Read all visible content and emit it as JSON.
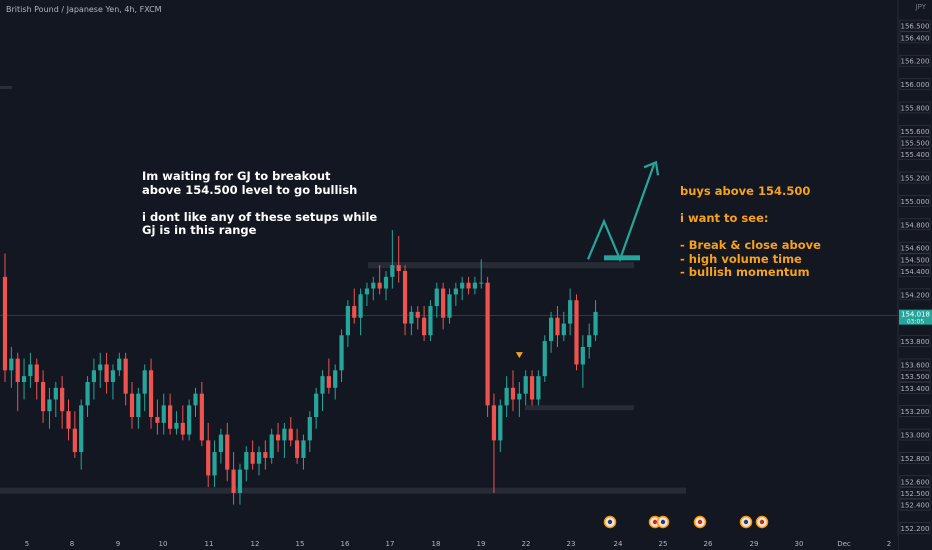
{
  "header": {
    "title": "British Pound / Japanese Yen, 4h, FXCM",
    "currency": "JPY"
  },
  "annotations": {
    "left_note": "Im waiting for GJ to breakout\nabove 154.500 level to go bullish\n\ni dont like any of these setups while\nGj is in this range",
    "right_note_lines": [
      "buys above 154.500",
      "",
      "i want to see:",
      "",
      "- Break & close above",
      "- high volume time",
      "- bullish momentum"
    ]
  },
  "colors": {
    "background": "#131722",
    "bull": "#26a69a",
    "bear": "#ef5350",
    "text": "#b2b5be",
    "annotation_orange": "#f7a21b",
    "zone": "#2a2e39"
  },
  "chart_data": {
    "type": "candlestick",
    "title": "British Pound / Japanese Yen, 4h, FXCM",
    "ylim": [
      152.2,
      156.6
    ],
    "x_tick_labels": [
      "5",
      "8",
      "9",
      "10",
      "11",
      "12",
      "15",
      "16",
      "17",
      "18",
      "19",
      "22",
      "23",
      "24",
      "25",
      "26",
      "29",
      "30",
      "Dec",
      "2"
    ],
    "y_tick_labels": [
      "156.500",
      "156.400",
      "156.200",
      "156.000",
      "155.800",
      "155.600",
      "155.500",
      "155.400",
      "155.200",
      "155.000",
      "154.800",
      "154.600",
      "154.500",
      "154.400",
      "154.200",
      "154.000",
      "153.800",
      "153.600",
      "153.500",
      "153.400",
      "153.200",
      "153.000",
      "152.800",
      "152.600",
      "152.500",
      "152.400",
      "152.200"
    ],
    "current_price": {
      "label": "154.018",
      "countdown": "03:05",
      "value": 154.018
    },
    "levels": {
      "resistance": 154.45,
      "support_mid": 153.23,
      "support_low": 152.52,
      "breakout_target": 154.5
    },
    "candles": [
      [
        154.35,
        154.55,
        153.45,
        153.55
      ],
      [
        153.55,
        153.75,
        153.4,
        153.65
      ],
      [
        153.65,
        153.7,
        153.2,
        153.45
      ],
      [
        153.45,
        153.65,
        153.3,
        153.5
      ],
      [
        153.5,
        153.7,
        153.4,
        153.6
      ],
      [
        153.6,
        153.65,
        153.3,
        153.45
      ],
      [
        153.45,
        153.55,
        153.1,
        153.2
      ],
      [
        153.2,
        153.4,
        153.05,
        153.3
      ],
      [
        153.3,
        153.45,
        153.15,
        153.4
      ],
      [
        153.4,
        153.5,
        153.05,
        153.2
      ],
      [
        153.2,
        153.3,
        152.95,
        153.05
      ],
      [
        153.05,
        153.2,
        152.8,
        152.85
      ],
      [
        152.85,
        153.3,
        152.7,
        153.25
      ],
      [
        153.25,
        153.5,
        153.15,
        153.45
      ],
      [
        153.45,
        153.65,
        153.3,
        153.55
      ],
      [
        153.55,
        153.7,
        153.4,
        153.6
      ],
      [
        153.6,
        153.7,
        153.35,
        153.45
      ],
      [
        153.45,
        153.6,
        153.3,
        153.55
      ],
      [
        153.55,
        153.7,
        153.5,
        153.65
      ],
      [
        153.65,
        153.7,
        153.25,
        153.35
      ],
      [
        153.35,
        153.45,
        153.05,
        153.15
      ],
      [
        153.15,
        153.4,
        153.05,
        153.35
      ],
      [
        153.35,
        153.6,
        153.2,
        153.55
      ],
      [
        153.55,
        153.65,
        153.05,
        153.15
      ],
      [
        153.15,
        153.3,
        153.0,
        153.1
      ],
      [
        153.1,
        153.35,
        153.0,
        153.25
      ],
      [
        153.25,
        153.35,
        153.0,
        153.05
      ],
      [
        153.05,
        153.2,
        153.0,
        153.1
      ],
      [
        153.1,
        153.25,
        152.95,
        153.0
      ],
      [
        153.0,
        153.3,
        152.95,
        153.25
      ],
      [
        153.25,
        153.4,
        153.15,
        153.35
      ],
      [
        153.35,
        153.45,
        152.9,
        152.95
      ],
      [
        152.95,
        153.1,
        152.55,
        152.65
      ],
      [
        152.65,
        152.95,
        152.55,
        152.85
      ],
      [
        152.85,
        153.05,
        152.75,
        153.0
      ],
      [
        153.0,
        153.1,
        152.6,
        152.7
      ],
      [
        152.7,
        152.85,
        152.4,
        152.5
      ],
      [
        152.5,
        152.75,
        152.4,
        152.7
      ],
      [
        152.7,
        152.9,
        152.6,
        152.85
      ],
      [
        152.85,
        152.95,
        152.7,
        152.75
      ],
      [
        152.75,
        152.9,
        152.65,
        152.85
      ],
      [
        152.85,
        152.95,
        152.7,
        152.8
      ],
      [
        152.8,
        153.05,
        152.75,
        153.0
      ],
      [
        153.0,
        153.1,
        152.85,
        152.95
      ],
      [
        152.95,
        153.1,
        152.8,
        153.05
      ],
      [
        153.05,
        153.15,
        152.9,
        152.95
      ],
      [
        152.95,
        153.05,
        152.75,
        152.8
      ],
      [
        152.8,
        153.0,
        152.7,
        152.95
      ],
      [
        152.95,
        153.2,
        152.85,
        153.15
      ],
      [
        153.15,
        153.4,
        153.05,
        153.35
      ],
      [
        153.35,
        153.55,
        153.2,
        153.5
      ],
      [
        153.5,
        153.65,
        153.35,
        153.4
      ],
      [
        153.4,
        153.6,
        153.3,
        153.55
      ],
      [
        153.55,
        153.9,
        153.45,
        153.85
      ],
      [
        153.85,
        154.15,
        153.75,
        154.1
      ],
      [
        154.1,
        154.25,
        153.95,
        154.0
      ],
      [
        154.0,
        154.25,
        153.85,
        154.2
      ],
      [
        154.2,
        154.3,
        154.1,
        154.25
      ],
      [
        154.25,
        154.35,
        154.15,
        154.3
      ],
      [
        154.3,
        154.45,
        154.2,
        154.25
      ],
      [
        154.25,
        154.4,
        154.15,
        154.35
      ],
      [
        154.35,
        154.75,
        154.25,
        154.45
      ],
      [
        154.45,
        154.7,
        154.3,
        154.4
      ],
      [
        154.4,
        154.45,
        153.85,
        153.95
      ],
      [
        153.95,
        154.1,
        153.85,
        154.05
      ],
      [
        154.05,
        154.1,
        153.9,
        154.0
      ],
      [
        154.0,
        154.1,
        153.8,
        153.85
      ],
      [
        153.85,
        154.15,
        153.8,
        154.1
      ],
      [
        154.1,
        154.3,
        154.0,
        154.25
      ],
      [
        154.25,
        154.3,
        153.9,
        154.0
      ],
      [
        154.0,
        154.25,
        153.95,
        154.2
      ],
      [
        154.2,
        154.3,
        154.1,
        154.25
      ],
      [
        154.25,
        154.35,
        154.15,
        154.3
      ],
      [
        154.3,
        154.35,
        154.2,
        154.25
      ],
      [
        154.25,
        154.35,
        154.2,
        154.3
      ],
      [
        154.3,
        154.5,
        154.25,
        154.3
      ],
      [
        154.3,
        154.35,
        153.15,
        153.25
      ],
      [
        153.25,
        153.35,
        152.5,
        152.95
      ],
      [
        152.95,
        153.3,
        152.85,
        153.25
      ],
      [
        153.25,
        153.5,
        153.15,
        153.4
      ],
      [
        153.4,
        153.55,
        153.2,
        153.3
      ],
      [
        153.3,
        153.45,
        153.15,
        153.35
      ],
      [
        153.35,
        153.55,
        153.25,
        153.5
      ],
      [
        153.5,
        153.55,
        153.25,
        153.3
      ],
      [
        153.3,
        153.55,
        153.25,
        153.5
      ],
      [
        153.5,
        153.85,
        153.45,
        153.8
      ],
      [
        153.8,
        154.05,
        153.7,
        154.0
      ],
      [
        154.0,
        154.1,
        153.75,
        153.85
      ],
      [
        153.85,
        154.05,
        153.8,
        153.95
      ],
      [
        153.95,
        154.25,
        153.85,
        154.15
      ],
      [
        154.15,
        154.2,
        153.55,
        153.6
      ],
      [
        153.6,
        153.85,
        153.4,
        153.75
      ],
      [
        153.75,
        153.95,
        153.65,
        153.85
      ],
      [
        153.85,
        154.15,
        153.8,
        154.05
      ]
    ],
    "signal_marker": {
      "candle_index": 81,
      "value": 153.68,
      "type": "down-triangle"
    },
    "event_icons": [
      {
        "label": "🇬🇧",
        "x_label": "24"
      },
      {
        "label": "🇯🇵",
        "x_label": "25"
      },
      {
        "label": "🇬🇧",
        "x_label": "25"
      },
      {
        "label": "🇯🇵",
        "x_label": "26"
      },
      {
        "label": "🇯🇵",
        "x_label": "29"
      },
      {
        "label": "🇬🇧",
        "x_label": "29"
      }
    ]
  }
}
